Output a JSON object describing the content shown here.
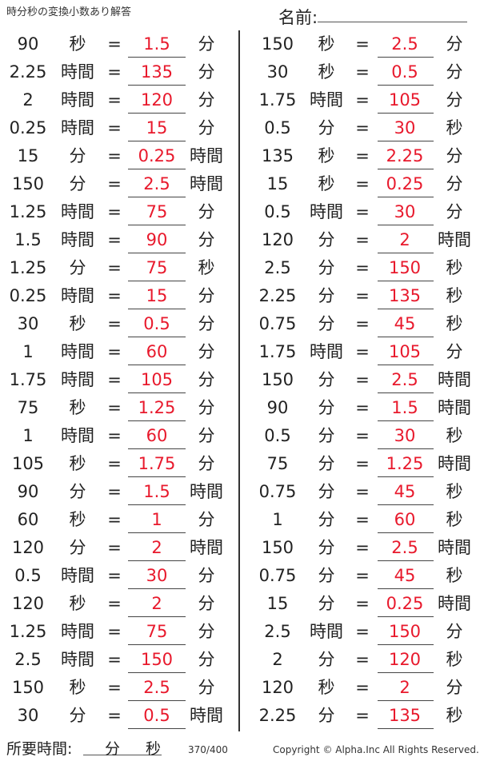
{
  "title": "時分秒の変換小数あり解答",
  "name_label": "名前:",
  "left": [
    [
      "90",
      "秒",
      "=",
      "1.5",
      "分"
    ],
    [
      "2.25",
      "時間",
      "=",
      "135",
      "分"
    ],
    [
      "2",
      "時間",
      "=",
      "120",
      "分"
    ],
    [
      "0.25",
      "時間",
      "=",
      "15",
      "分"
    ],
    [
      "15",
      "分",
      "=",
      "0.25",
      "時間"
    ],
    [
      "150",
      "分",
      "=",
      "2.5",
      "時間"
    ],
    [
      "1.25",
      "時間",
      "=",
      "75",
      "分"
    ],
    [
      "1.5",
      "時間",
      "=",
      "90",
      "分"
    ],
    [
      "1.25",
      "分",
      "=",
      "75",
      "秒"
    ],
    [
      "0.25",
      "時間",
      "=",
      "15",
      "分"
    ],
    [
      "30",
      "秒",
      "=",
      "0.5",
      "分"
    ],
    [
      "1",
      "時間",
      "=",
      "60",
      "分"
    ],
    [
      "1.75",
      "時間",
      "=",
      "105",
      "分"
    ],
    [
      "75",
      "秒",
      "=",
      "1.25",
      "分"
    ],
    [
      "1",
      "時間",
      "=",
      "60",
      "分"
    ],
    [
      "105",
      "秒",
      "=",
      "1.75",
      "分"
    ],
    [
      "90",
      "分",
      "=",
      "1.5",
      "時間"
    ],
    [
      "60",
      "秒",
      "=",
      "1",
      "分"
    ],
    [
      "120",
      "分",
      "=",
      "2",
      "時間"
    ],
    [
      "0.5",
      "時間",
      "=",
      "30",
      "分"
    ],
    [
      "120",
      "秒",
      "=",
      "2",
      "分"
    ],
    [
      "1.25",
      "時間",
      "=",
      "75",
      "分"
    ],
    [
      "2.5",
      "時間",
      "=",
      "150",
      "分"
    ],
    [
      "150",
      "秒",
      "=",
      "2.5",
      "分"
    ],
    [
      "30",
      "分",
      "=",
      "0.5",
      "時間"
    ]
  ],
  "right": [
    [
      "150",
      "秒",
      "=",
      "2.5",
      "分"
    ],
    [
      "30",
      "秒",
      "=",
      "0.5",
      "分"
    ],
    [
      "1.75",
      "時間",
      "=",
      "105",
      "分"
    ],
    [
      "0.5",
      "分",
      "=",
      "30",
      "秒"
    ],
    [
      "135",
      "秒",
      "=",
      "2.25",
      "分"
    ],
    [
      "15",
      "秒",
      "=",
      "0.25",
      "分"
    ],
    [
      "0.5",
      "時間",
      "=",
      "30",
      "分"
    ],
    [
      "120",
      "分",
      "=",
      "2",
      "時間"
    ],
    [
      "2.5",
      "分",
      "=",
      "150",
      "秒"
    ],
    [
      "2.25",
      "分",
      "=",
      "135",
      "秒"
    ],
    [
      "0.75",
      "分",
      "=",
      "45",
      "秒"
    ],
    [
      "1.75",
      "時間",
      "=",
      "105",
      "分"
    ],
    [
      "150",
      "分",
      "=",
      "2.5",
      "時間"
    ],
    [
      "90",
      "分",
      "=",
      "1.5",
      "時間"
    ],
    [
      "0.5",
      "分",
      "=",
      "30",
      "秒"
    ],
    [
      "75",
      "分",
      "=",
      "1.25",
      "時間"
    ],
    [
      "0.75",
      "分",
      "=",
      "45",
      "秒"
    ],
    [
      "1",
      "分",
      "=",
      "60",
      "秒"
    ],
    [
      "150",
      "分",
      "=",
      "2.5",
      "時間"
    ],
    [
      "0.75",
      "分",
      "=",
      "45",
      "秒"
    ],
    [
      "15",
      "分",
      "=",
      "0.25",
      "時間"
    ],
    [
      "2.5",
      "時間",
      "=",
      "150",
      "分"
    ],
    [
      "2",
      "分",
      "=",
      "120",
      "秒"
    ],
    [
      "120",
      "秒",
      "=",
      "2",
      "分"
    ],
    [
      "2.25",
      "分",
      "=",
      "135",
      "秒"
    ]
  ],
  "footer": {
    "time_label": "所要時間:",
    "min": "分",
    "sec": "秒",
    "page": "370/400",
    "copyright": "Copyright © Alpha.Inc All Rights Reserved."
  },
  "colors": {
    "answer": "#e8192c"
  }
}
